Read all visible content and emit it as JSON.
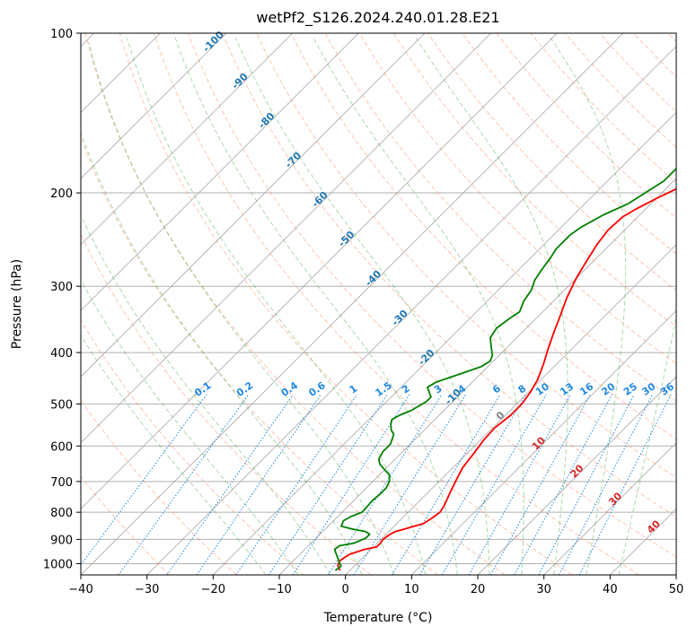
{
  "chart_data": {
    "type": "line",
    "title": "wetPf2_S126.2024.240.01.28.E21",
    "xlabel": "Temperature (°C)",
    "ylabel": "Pressure (hPa)",
    "xlim": [
      -40,
      50
    ],
    "ylim": [
      1050,
      100
    ],
    "y_scale": "log",
    "grid": true,
    "x_ticks": [
      "−40",
      "−30",
      "−20",
      "−10",
      "0",
      "10",
      "20",
      "30",
      "40",
      "50"
    ],
    "x_tick_values": [
      -40,
      -30,
      -20,
      -10,
      0,
      10,
      20,
      30,
      40,
      50
    ],
    "y_ticks": [
      "100",
      "200",
      "300",
      "400",
      "500",
      "600",
      "700",
      "800",
      "900",
      "1000"
    ],
    "y_tick_values": [
      100,
      200,
      300,
      400,
      500,
      600,
      700,
      800,
      900,
      1000
    ],
    "colors": {
      "temperature": "#ff0000",
      "dewpoint": "#008000",
      "dry_adiabat": "#ff7f50",
      "moist_adiabat": "#2ca02c",
      "mixing_ratio": "#1e88e5",
      "isotherm": "#808080",
      "isotherm_label": "#1f77b4",
      "positive_isotherm_label": "#d62728"
    },
    "series": [
      {
        "key": "temperature",
        "points": [
          [
            -1.5,
            1030
          ],
          [
            -2.5,
            1010
          ],
          [
            -3,
            990
          ],
          [
            -2.8,
            975
          ],
          [
            -2.5,
            960
          ],
          [
            -1,
            940
          ],
          [
            0.5,
            930
          ],
          [
            0.5,
            915
          ],
          [
            0.3,
            900
          ],
          [
            0.6,
            880
          ],
          [
            1,
            870
          ],
          [
            2,
            860
          ],
          [
            3,
            850
          ],
          [
            4,
            840
          ],
          [
            4.5,
            820
          ],
          [
            4.8,
            800
          ],
          [
            4.5,
            780
          ],
          [
            3.5,
            740
          ],
          [
            2.5,
            700
          ],
          [
            1.5,
            660
          ],
          [
            1,
            620
          ],
          [
            0.5,
            585
          ],
          [
            0.3,
            555
          ],
          [
            0.8,
            525
          ],
          [
            0.8,
            500
          ],
          [
            0.3,
            475
          ],
          [
            -0.5,
            450
          ],
          [
            -2,
            420
          ],
          [
            -3.5,
            395
          ],
          [
            -5,
            370
          ],
          [
            -6.5,
            345
          ],
          [
            -8.5,
            315
          ],
          [
            -10,
            290
          ],
          [
            -11,
            270
          ],
          [
            -12,
            250
          ],
          [
            -12.5,
            235
          ],
          [
            -12.3,
            222
          ],
          [
            -11.5,
            215
          ],
          [
            -10,
            205
          ],
          [
            -8.5,
            197
          ],
          [
            -6.5,
            188
          ],
          [
            -4.5,
            180
          ],
          [
            -3,
            175
          ],
          [
            -2,
            170
          ],
          [
            -1.5,
            165
          ],
          [
            -1,
            160
          ],
          [
            -0.5,
            155
          ],
          [
            -0.3,
            150
          ],
          [
            -0.5,
            145
          ],
          [
            -1,
            140
          ],
          [
            -1.5,
            135
          ],
          [
            -2,
            130
          ],
          [
            -2.8,
            124
          ],
          [
            -3.5,
            118
          ],
          [
            -4.5,
            113
          ],
          [
            -5.5,
            108
          ],
          [
            -6.5,
            100
          ]
        ]
      },
      {
        "key": "dewpoint",
        "points": [
          [
            -2.2,
            1030
          ],
          [
            -2,
            1010
          ],
          [
            -2.8,
            995
          ],
          [
            -3.5,
            980
          ],
          [
            -4.5,
            960
          ],
          [
            -5.5,
            940
          ],
          [
            -5.3,
            925
          ],
          [
            -3.5,
            915
          ],
          [
            -2.5,
            895
          ],
          [
            -2.5,
            880
          ],
          [
            -3.5,
            870
          ],
          [
            -6,
            860
          ],
          [
            -8,
            850
          ],
          [
            -8.5,
            830
          ],
          [
            -8,
            815
          ],
          [
            -7,
            800
          ],
          [
            -7,
            790
          ],
          [
            -7.2,
            760
          ],
          [
            -7,
            740
          ],
          [
            -7,
            720
          ],
          [
            -7.5,
            700
          ],
          [
            -8.5,
            680
          ],
          [
            -10,
            665
          ],
          [
            -11.5,
            650
          ],
          [
            -12.5,
            635
          ],
          [
            -13,
            615
          ],
          [
            -13,
            595
          ],
          [
            -14,
            570
          ],
          [
            -15,
            560
          ],
          [
            -16,
            545
          ],
          [
            -16.5,
            535
          ],
          [
            -16,
            525
          ],
          [
            -15,
            515
          ],
          [
            -14.5,
            505
          ],
          [
            -14,
            495
          ],
          [
            -14,
            485
          ],
          [
            -15,
            475
          ],
          [
            -16,
            465
          ],
          [
            -15.5,
            455
          ],
          [
            -14,
            445
          ],
          [
            -12.5,
            435
          ],
          [
            -11,
            425
          ],
          [
            -10.5,
            415
          ],
          [
            -11,
            405
          ],
          [
            -12,
            395
          ],
          [
            -13,
            385
          ],
          [
            -14,
            375
          ],
          [
            -14.5,
            360
          ],
          [
            -14,
            345
          ],
          [
            -13.5,
            335
          ],
          [
            -14.5,
            320
          ],
          [
            -15,
            305
          ],
          [
            -16,
            292
          ],
          [
            -16.5,
            280
          ],
          [
            -17,
            265
          ],
          [
            -17.5,
            255
          ],
          [
            -17.5,
            240
          ],
          [
            -17,
            232
          ],
          [
            -15.5,
            220
          ],
          [
            -13.5,
            210
          ],
          [
            -12.5,
            200
          ],
          [
            -11.5,
            190
          ],
          [
            -11.5,
            180
          ],
          [
            -11.5,
            170
          ],
          [
            -11,
            165
          ],
          [
            -10.5,
            160
          ],
          [
            -10,
            155
          ],
          [
            -9,
            148
          ],
          [
            -8,
            140
          ],
          [
            -7,
            133
          ],
          [
            -6,
            126
          ],
          [
            -5,
            120
          ],
          [
            -4,
            114
          ],
          [
            -3,
            108
          ],
          [
            -1.5,
            100
          ]
        ]
      }
    ],
    "isotherm_labels": [
      "-100",
      "-90",
      "-80",
      "-70",
      "-60",
      "-50",
      "-40",
      "-30",
      "-20",
      "-10"
    ],
    "isotherm_label_temps": [
      -100,
      -90,
      -80,
      -70,
      -60,
      -50,
      -40,
      -30,
      -20,
      -10
    ],
    "positive_isotherm_labels": [
      "0",
      "10",
      "20",
      "30",
      "40"
    ],
    "positive_isotherm_label_temps": [
      0,
      10,
      20,
      30,
      40
    ],
    "mixing_ratio_labels": [
      "0.1",
      "0.2",
      "0.4",
      "0.6",
      "1",
      "1.5",
      "2",
      "3",
      "4",
      "6",
      "8",
      "10",
      "13",
      "16",
      "20",
      "25",
      "30",
      "36"
    ],
    "mixing_ratio_values": [
      0.1,
      0.2,
      0.4,
      0.6,
      1,
      1.5,
      2,
      3,
      4,
      6,
      8,
      10,
      13,
      16,
      20,
      25,
      30,
      36
    ]
  }
}
